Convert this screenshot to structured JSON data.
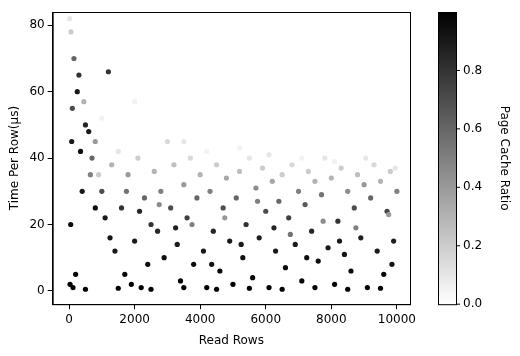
{
  "chart_data": {
    "type": "scatter",
    "x_label": "Read Rows",
    "y_label": "Time Per Row(μs)",
    "xlim": [
      -500,
      10400
    ],
    "xticks": [
      0,
      2000,
      4000,
      6000,
      8000,
      10000
    ],
    "ylim": [
      -4,
      84
    ],
    "yticks": [
      0,
      20,
      40,
      60,
      80
    ],
    "grid": false,
    "x": [
      20,
      60,
      150,
      300,
      250,
      100,
      450,
      500,
      80,
      350,
      600,
      700,
      800,
      1200,
      900,
      400,
      50,
      200,
      30,
      120,
      1000,
      1100,
      1300,
      1500,
      1600,
      1800,
      2000,
      2100,
      2300,
      2400,
      1400,
      1700,
      1900,
      2200,
      2500,
      2600,
      2700,
      2800,
      2900,
      3000,
      3100,
      3200,
      3300,
      3400,
      3500,
      3600,
      3700,
      3800,
      3900,
      4000,
      4100,
      4200,
      4300,
      4400,
      4500,
      4600,
      4700,
      4800,
      4900,
      5000,
      5100,
      5200,
      5300,
      5400,
      5500,
      5600,
      5700,
      5800,
      5900,
      6000,
      6100,
      6200,
      6300,
      6400,
      6500,
      6600,
      6700,
      6800,
      6900,
      7000,
      7100,
      7200,
      7300,
      7400,
      7500,
      7600,
      7700,
      7800,
      7900,
      8000,
      8100,
      8200,
      8300,
      8400,
      8500,
      8600,
      8700,
      8800,
      8900,
      9000,
      9100,
      9200,
      9300,
      9400,
      9500,
      9600,
      9700,
      9800,
      9900,
      10000,
      500,
      1500,
      2500,
      3500,
      4500,
      5500,
      6500,
      7500,
      8500,
      9500,
      800,
      1250,
      2150,
      3250,
      4350,
      5250,
      6250,
      7250,
      8250,
      9850,
      1000,
      2000,
      3500,
      4200,
      5200,
      6100,
      7100,
      8100,
      9050,
      9950,
      650,
      1750,
      2750,
      3750,
      4750,
      5750,
      6750,
      7750,
      8750,
      9750
    ],
    "values": [
      82,
      78,
      70,
      65,
      60,
      55,
      57,
      50,
      45,
      42,
      48,
      40,
      45,
      66,
      35,
      30,
      20,
      5,
      2,
      1,
      30,
      22,
      38,
      42,
      25,
      35,
      15,
      40,
      28,
      8,
      12,
      5,
      2,
      1,
      20,
      36,
      18,
      30,
      10,
      45,
      25,
      38,
      14,
      3,
      32,
      22,
      40,
      8,
      28,
      35,
      12,
      1,
      30,
      18,
      38,
      6,
      25,
      34,
      15,
      2,
      28,
      36,
      10,
      20,
      40,
      4,
      31,
      16,
      37,
      24,
      1,
      33,
      12,
      27,
      35,
      7,
      22,
      38,
      14,
      30,
      3,
      26,
      36,
      18,
      33,
      9,
      29,
      40,
      13,
      34,
      2,
      21,
      37,
      11,
      30,
      6,
      25,
      35,
      16,
      32,
      1,
      28,
      38,
      12,
      33,
      5,
      24,
      36,
      15,
      30,
      0.5,
      0.8,
      0.5,
      1,
      0.5,
      0.8,
      0.5,
      1,
      0.5,
      0.8,
      25,
      16,
      24,
      19,
      8,
      14,
      19,
      10,
      15,
      8,
      52,
      57,
      45,
      42,
      43,
      41,
      40,
      39,
      40,
      37,
      35,
      30,
      26,
      20,
      22,
      27,
      17,
      21,
      19,
      23
    ],
    "page_cache_ratio": [
      0.1,
      0.2,
      0.6,
      0.8,
      0.9,
      0.7,
      0.3,
      0.85,
      0.9,
      0.95,
      0.9,
      0.6,
      0.4,
      0.8,
      0.2,
      0.9,
      0.95,
      0.98,
      0.99,
      1.0,
      0.7,
      0.9,
      0.3,
      0.1,
      0.8,
      0.4,
      0.9,
      0.2,
      0.6,
      0.95,
      0.9,
      0.97,
      1.0,
      1.0,
      0.8,
      0.3,
      0.85,
      0.5,
      0.95,
      0.15,
      0.7,
      0.25,
      0.9,
      1.0,
      0.4,
      0.75,
      0.15,
      0.95,
      0.6,
      0.3,
      0.9,
      1.0,
      0.5,
      0.85,
      0.2,
      0.97,
      0.7,
      0.35,
      0.9,
      1.0,
      0.6,
      0.25,
      0.93,
      0.8,
      0.1,
      0.98,
      0.45,
      0.88,
      0.2,
      0.7,
      1.0,
      0.35,
      0.9,
      0.6,
      0.2,
      0.96,
      0.75,
      0.15,
      0.9,
      0.5,
      0.99,
      0.65,
      0.2,
      0.85,
      0.3,
      0.95,
      0.55,
      0.1,
      0.9,
      0.3,
      1.0,
      0.8,
      0.2,
      0.92,
      0.45,
      0.97,
      0.7,
      0.25,
      0.88,
      0.4,
      1.0,
      0.6,
      0.15,
      0.9,
      0.3,
      0.98,
      0.72,
      0.2,
      0.88,
      0.5,
      1.0,
      1.0,
      1.0,
      1.0,
      1.0,
      1.0,
      1.0,
      1.0,
      1.0,
      1.0,
      0.95,
      0.92,
      0.85,
      0.88,
      0.93,
      0.9,
      0.85,
      0.94,
      0.9,
      0.93,
      0.05,
      0.05,
      0.1,
      0.05,
      0.05,
      0.1,
      0.05,
      0.05,
      0.1,
      0.1,
      0.5,
      0.55,
      0.45,
      0.5,
      0.4,
      0.5,
      0.55,
      0.45,
      0.5,
      0.4
    ],
    "colorbar": {
      "label": "Page Cache Ratio",
      "range": [
        0,
        1
      ],
      "ticks": [
        {
          "value": 0,
          "label": "0.0"
        },
        {
          "value": 0.2,
          "label": "0.2"
        },
        {
          "value": 0.4,
          "label": "0.4"
        },
        {
          "value": 0.6,
          "label": "0.6"
        },
        {
          "value": 0.8,
          "label": "0.8"
        }
      ]
    }
  }
}
